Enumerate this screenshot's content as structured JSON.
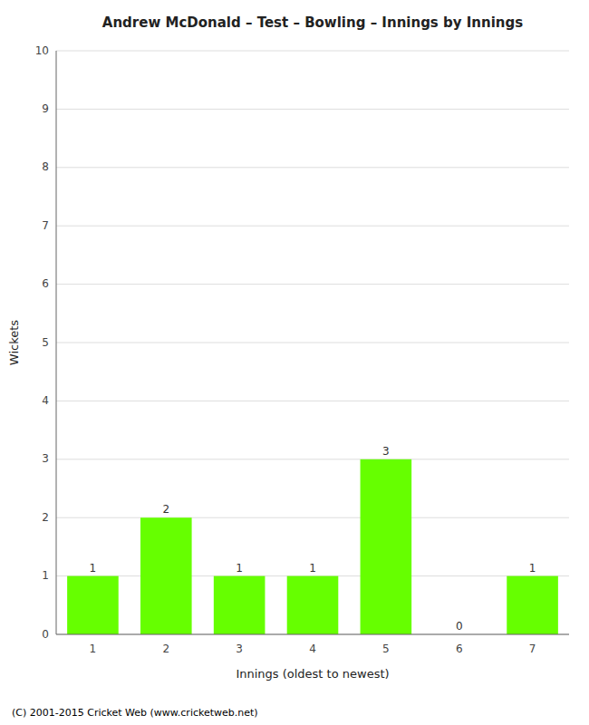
{
  "chart_data": {
    "type": "bar",
    "title": "Andrew McDonald – Test – Bowling – Innings by Innings",
    "xlabel": "Innings (oldest to newest)",
    "ylabel": "Wickets",
    "categories": [
      "1",
      "2",
      "3",
      "4",
      "5",
      "6",
      "7"
    ],
    "values": [
      1,
      2,
      1,
      1,
      3,
      0,
      1
    ],
    "color": "#66ff00",
    "ylim": [
      0,
      10
    ],
    "yticks": [
      0,
      1,
      2,
      3,
      4,
      5,
      6,
      7,
      8,
      9,
      10
    ],
    "grid": true,
    "data_labels": true,
    "annotations": [
      "(C) 2001-2015 Cricket Web (www.cricketweb.net)"
    ]
  }
}
